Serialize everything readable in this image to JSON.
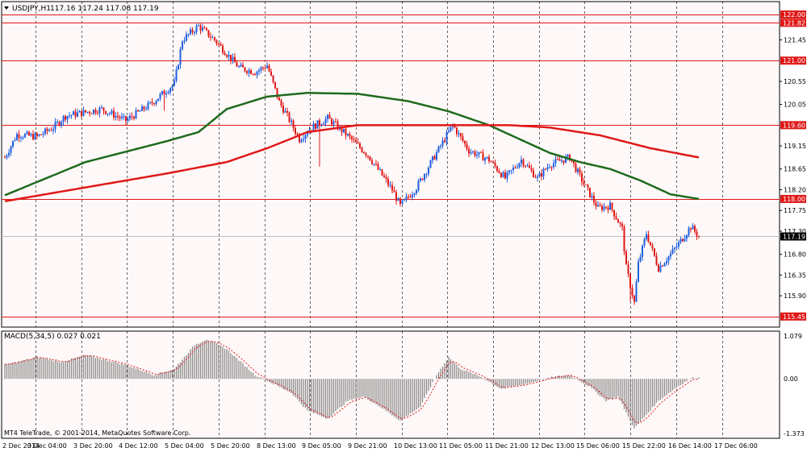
{
  "header": {
    "symbol_label": "USDJPY,H1",
    "ohlc_text": "117.16 117.24 117.08 117.19"
  },
  "macd": {
    "label": "MACD(5,34,5) 0.027 0.021",
    "scale_labels": [
      "1.079",
      "0.00",
      "-1.373"
    ]
  },
  "footer": {
    "copyright": "MT4 TeleTrade, © 2001-2014, MetaQuotes Software Corp."
  },
  "colors": {
    "background": "#fff8f8",
    "bull": "#1f5fe0",
    "bear": "#e01818",
    "sma_fast": "#1e6b1e",
    "sma_slow": "#e01818",
    "level_line": "#e01818",
    "label_bg": "#e01818",
    "current_bg": "#000000",
    "macd_hist": "#8a8a8a",
    "macd_signal": "#e01818"
  },
  "chart_data": {
    "type": "candlestick",
    "instrument": "USDJPY",
    "timeframe": "H1",
    "current_price": "117.19",
    "price_axis": {
      "ylim": [
        115.22,
        122.28
      ],
      "ticks": [
        "121.45",
        "120.55",
        "120.05",
        "119.15",
        "118.65",
        "118.20",
        "117.75",
        "117.30",
        "116.80",
        "116.35",
        "115.90"
      ]
    },
    "horizontal_levels": [
      "122.00",
      "121.82",
      "121.00",
      "119.60",
      "118.00",
      "115.45"
    ],
    "x_labels": [
      "2 Dec 2014",
      "3 Dec 04:00",
      "3 Dec 20:00",
      "4 Dec 12:00",
      "5 Dec 04:00",
      "5 Dec 20:00",
      "8 Dec 13:00",
      "9 Dec 05:00",
      "9 Dec 21:00",
      "10 Dec 13:00",
      "11 Dec 05:00",
      "11 Dec 21:00",
      "12 Dec 13:00",
      "15 Dec 06:00",
      "15 Dec 22:00",
      "16 Dec 14:00",
      "17 Dec 06:00"
    ],
    "anchors": [
      {
        "t": 0,
        "p": 118.9
      },
      {
        "t": 6,
        "p": 119.4
      },
      {
        "t": 16,
        "p": 119.35
      },
      {
        "t": 24,
        "p": 119.55
      },
      {
        "t": 30,
        "p": 119.8
      },
      {
        "t": 48,
        "p": 119.95
      },
      {
        "t": 60,
        "p": 119.7
      },
      {
        "t": 72,
        "p": 120.05
      },
      {
        "t": 84,
        "p": 120.5
      },
      {
        "t": 88,
        "p": 121.45
      },
      {
        "t": 96,
        "p": 121.75
      },
      {
        "t": 104,
        "p": 121.45
      },
      {
        "t": 116,
        "p": 120.85
      },
      {
        "t": 124,
        "p": 120.75
      },
      {
        "t": 130,
        "p": 120.9
      },
      {
        "t": 136,
        "p": 120.1
      },
      {
        "t": 140,
        "p": 119.8
      },
      {
        "t": 146,
        "p": 119.3
      },
      {
        "t": 152,
        "p": 119.55
      },
      {
        "t": 160,
        "p": 119.75
      },
      {
        "t": 168,
        "p": 119.45
      },
      {
        "t": 180,
        "p": 118.95
      },
      {
        "t": 192,
        "p": 118.2
      },
      {
        "t": 196,
        "p": 117.85
      },
      {
        "t": 204,
        "p": 118.25
      },
      {
        "t": 212,
        "p": 118.85
      },
      {
        "t": 222,
        "p": 119.6
      },
      {
        "t": 230,
        "p": 119.05
      },
      {
        "t": 240,
        "p": 118.85
      },
      {
        "t": 248,
        "p": 118.45
      },
      {
        "t": 256,
        "p": 118.85
      },
      {
        "t": 264,
        "p": 118.45
      },
      {
        "t": 270,
        "p": 118.75
      },
      {
        "t": 280,
        "p": 118.9
      },
      {
        "t": 288,
        "p": 118.25
      },
      {
        "t": 294,
        "p": 117.8
      },
      {
        "t": 300,
        "p": 117.85
      },
      {
        "t": 306,
        "p": 117.35
      },
      {
        "t": 308,
        "p": 116.5
      },
      {
        "t": 312,
        "p": 115.75
      },
      {
        "t": 314,
        "p": 116.6
      },
      {
        "t": 318,
        "p": 117.25
      },
      {
        "t": 324,
        "p": 116.5
      },
      {
        "t": 330,
        "p": 116.8
      },
      {
        "t": 336,
        "p": 117.15
      },
      {
        "t": 340,
        "p": 117.4
      },
      {
        "t": 344,
        "p": 117.19
      }
    ],
    "sma_fast": [
      {
        "t": 0,
        "p": 118.08
      },
      {
        "t": 40,
        "p": 118.8
      },
      {
        "t": 80,
        "p": 119.25
      },
      {
        "t": 96,
        "p": 119.45
      },
      {
        "t": 110,
        "p": 119.95
      },
      {
        "t": 130,
        "p": 120.22
      },
      {
        "t": 150,
        "p": 120.3
      },
      {
        "t": 175,
        "p": 120.28
      },
      {
        "t": 200,
        "p": 120.12
      },
      {
        "t": 220,
        "p": 119.9
      },
      {
        "t": 240,
        "p": 119.6
      },
      {
        "t": 255,
        "p": 119.3
      },
      {
        "t": 270,
        "p": 119.0
      },
      {
        "t": 285,
        "p": 118.8
      },
      {
        "t": 300,
        "p": 118.65
      },
      {
        "t": 315,
        "p": 118.4
      },
      {
        "t": 330,
        "p": 118.1
      },
      {
        "t": 344,
        "p": 118.0
      }
    ],
    "sma_slow": [
      {
        "t": 0,
        "p": 117.95
      },
      {
        "t": 40,
        "p": 118.25
      },
      {
        "t": 80,
        "p": 118.55
      },
      {
        "t": 110,
        "p": 118.8
      },
      {
        "t": 130,
        "p": 119.1
      },
      {
        "t": 150,
        "p": 119.45
      },
      {
        "t": 175,
        "p": 119.6
      },
      {
        "t": 200,
        "p": 119.6
      },
      {
        "t": 230,
        "p": 119.6
      },
      {
        "t": 250,
        "p": 119.6
      },
      {
        "t": 270,
        "p": 119.55
      },
      {
        "t": 295,
        "p": 119.38
      },
      {
        "t": 320,
        "p": 119.1
      },
      {
        "t": 344,
        "p": 118.9
      }
    ],
    "macd_hist": [
      {
        "t": 0,
        "v": 0.35
      },
      {
        "t": 16,
        "v": 0.55
      },
      {
        "t": 28,
        "v": 0.42
      },
      {
        "t": 40,
        "v": 0.6
      },
      {
        "t": 60,
        "v": 0.35
      },
      {
        "t": 74,
        "v": 0.1
      },
      {
        "t": 84,
        "v": 0.25
      },
      {
        "t": 94,
        "v": 0.85
      },
      {
        "t": 100,
        "v": 1.0
      },
      {
        "t": 110,
        "v": 0.75
      },
      {
        "t": 124,
        "v": 0.1
      },
      {
        "t": 130,
        "v": -0.05
      },
      {
        "t": 142,
        "v": -0.35
      },
      {
        "t": 150,
        "v": -0.8
      },
      {
        "t": 160,
        "v": -1.0
      },
      {
        "t": 170,
        "v": -0.55
      },
      {
        "t": 178,
        "v": -0.45
      },
      {
        "t": 186,
        "v": -0.7
      },
      {
        "t": 196,
        "v": -1.05
      },
      {
        "t": 206,
        "v": -0.7
      },
      {
        "t": 214,
        "v": 0.1
      },
      {
        "t": 220,
        "v": 0.55
      },
      {
        "t": 226,
        "v": 0.25
      },
      {
        "t": 236,
        "v": 0.05
      },
      {
        "t": 246,
        "v": -0.25
      },
      {
        "t": 256,
        "v": -0.15
      },
      {
        "t": 264,
        "v": -0.05
      },
      {
        "t": 272,
        "v": 0.05
      },
      {
        "t": 280,
        "v": 0.1
      },
      {
        "t": 290,
        "v": -0.2
      },
      {
        "t": 298,
        "v": -0.55
      },
      {
        "t": 304,
        "v": -0.45
      },
      {
        "t": 312,
        "v": -1.25
      },
      {
        "t": 318,
        "v": -0.9
      },
      {
        "t": 324,
        "v": -0.55
      },
      {
        "t": 332,
        "v": -0.25
      },
      {
        "t": 340,
        "v": 0.02
      },
      {
        "t": 344,
        "v": 0.027
      }
    ],
    "bar_count": 345
  }
}
